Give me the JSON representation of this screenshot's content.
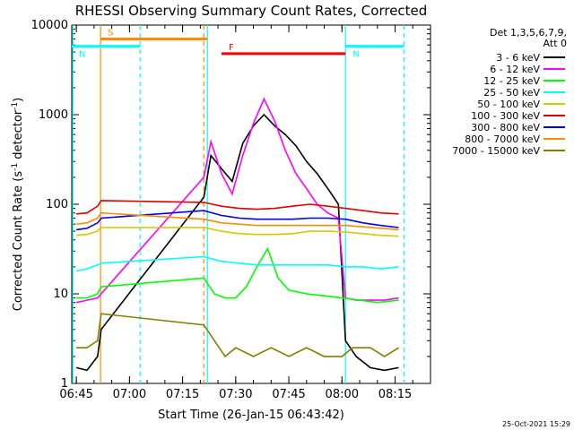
{
  "chart_data": {
    "type": "line",
    "title": "RHESSI Observing Summary Count Rates, Corrected",
    "xlabel": "Start Time (26-Jan-15 06:43:42)",
    "ylabel": "Corrected Count Rate (s⁻¹ detector⁻¹)",
    "ylabel_main": "Corrected Count Rate (s",
    "ylabel_sup1": "-1",
    "ylabel_mid": " detector",
    "ylabel_sup2": "-1",
    "ylabel_end": ")",
    "yscale": "log",
    "xlim": [
      "06:43:42",
      "08:25:00"
    ],
    "ylim": [
      1,
      10000
    ],
    "x_ticks": [
      "06:45",
      "07:00",
      "07:15",
      "07:30",
      "07:45",
      "08:00",
      "08:15"
    ],
    "y_ticks": [
      1,
      10,
      100,
      1000,
      10000
    ],
    "y_tick_labels": [
      "1",
      "10",
      "100",
      "1000",
      "10000"
    ],
    "legend_header": [
      "Det 1,3,5,6,7,9,",
      "Att 0"
    ],
    "legend_position": "right",
    "timestamp": "25-Oct-2021 15:29",
    "grid": false,
    "series": [
      {
        "name": "3 - 6 keV",
        "color": "#000000",
        "x": [
          "06:45",
          "06:48",
          "06:51",
          "06:52",
          "07:21",
          "07:23",
          "07:26",
          "07:29",
          "07:32",
          "07:35",
          "07:38",
          "07:41",
          "07:44",
          "07:47",
          "07:50",
          "07:53",
          "07:56",
          "07:59",
          "08:01",
          "08:04",
          "08:08",
          "08:12",
          "08:16"
        ],
        "y": [
          1.5,
          1.4,
          2,
          4,
          120,
          350,
          250,
          180,
          480,
          750,
          1000,
          750,
          600,
          450,
          300,
          220,
          150,
          100,
          3,
          2,
          1.5,
          1.4,
          1.5
        ]
      },
      {
        "name": "6 - 12 keV",
        "color": "#ff00ff",
        "x": [
          "06:45",
          "06:48",
          "06:51",
          "06:52",
          "07:21",
          "07:23",
          "07:26",
          "07:29",
          "07:32",
          "07:35",
          "07:38",
          "07:41",
          "07:44",
          "07:47",
          "07:50",
          "07:53",
          "07:56",
          "07:59",
          "08:01",
          "08:04",
          "08:08",
          "08:12",
          "08:16"
        ],
        "y": [
          8,
          8.5,
          9,
          10,
          200,
          500,
          220,
          130,
          350,
          800,
          1500,
          850,
          400,
          220,
          150,
          100,
          80,
          70,
          9,
          8.5,
          8.5,
          8.5,
          9
        ]
      },
      {
        "name": "12 - 25 keV",
        "color": "#00ff00",
        "x": [
          "06:45",
          "06:48",
          "06:51",
          "06:52",
          "07:21",
          "07:24",
          "07:27",
          "07:30",
          "07:33",
          "07:36",
          "07:39",
          "07:42",
          "07:45",
          "07:50",
          "07:55",
          "08:00",
          "08:05",
          "08:10",
          "08:16"
        ],
        "y": [
          9,
          9,
          10,
          12,
          15,
          10,
          9,
          9,
          12,
          20,
          32,
          15,
          11,
          10,
          9.5,
          9,
          8.5,
          8,
          8.5
        ]
      },
      {
        "name": "25 - 50 keV",
        "color": "#00ffff",
        "x": [
          "06:45",
          "06:48",
          "06:51",
          "06:52",
          "07:21",
          "07:26",
          "07:31",
          "07:36",
          "07:41",
          "07:46",
          "07:51",
          "07:56",
          "08:01",
          "08:06",
          "08:11",
          "08:16"
        ],
        "y": [
          18,
          19,
          21,
          22,
          26,
          23,
          22,
          21,
          21,
          21,
          21,
          21,
          20,
          20,
          19,
          20
        ]
      },
      {
        "name": "50 - 100 keV",
        "color": "#d4c800",
        "x": [
          "06:45",
          "06:48",
          "06:51",
          "06:52",
          "07:21",
          "07:26",
          "07:31",
          "07:36",
          "07:41",
          "07:46",
          "07:51",
          "07:56",
          "08:01",
          "08:06",
          "08:11",
          "08:16"
        ],
        "y": [
          45,
          46,
          50,
          55,
          55,
          50,
          47,
          46,
          46,
          47,
          50,
          50,
          49,
          47,
          45,
          44
        ]
      },
      {
        "name": "100 - 300 keV",
        "color": "#e00000",
        "x": [
          "06:45",
          "06:48",
          "06:51",
          "06:52",
          "07:21",
          "07:26",
          "07:31",
          "07:36",
          "07:41",
          "07:46",
          "07:51",
          "07:56",
          "08:01",
          "08:06",
          "08:11",
          "08:16"
        ],
        "y": [
          78,
          80,
          95,
          110,
          105,
          95,
          90,
          88,
          90,
          95,
          100,
          95,
          90,
          85,
          80,
          78
        ]
      },
      {
        "name": "300 - 800 keV",
        "color": "#0000ee",
        "x": [
          "06:45",
          "06:48",
          "06:51",
          "06:52",
          "07:21",
          "07:26",
          "07:31",
          "07:36",
          "07:41",
          "07:46",
          "07:51",
          "07:56",
          "08:01",
          "08:06",
          "08:11",
          "08:16"
        ],
        "y": [
          52,
          54,
          62,
          70,
          85,
          75,
          70,
          68,
          68,
          68,
          70,
          70,
          68,
          62,
          58,
          55
        ]
      },
      {
        "name": "800 - 7000 keV",
        "color": "#ff8c00",
        "x": [
          "06:45",
          "06:48",
          "06:51",
          "06:52",
          "07:21",
          "07:26",
          "07:31",
          "07:36",
          "07:41",
          "07:46",
          "07:51",
          "07:56",
          "08:01",
          "08:06",
          "08:11",
          "08:16"
        ],
        "y": [
          60,
          62,
          70,
          80,
          68,
          62,
          60,
          58,
          58,
          58,
          58,
          58,
          58,
          56,
          54,
          52
        ]
      },
      {
        "name": "7000 - 15000 keV",
        "color": "#808000",
        "x": [
          "06:45",
          "06:48",
          "06:51",
          "06:52",
          "07:21",
          "07:24",
          "07:27",
          "07:30",
          "07:35",
          "07:40",
          "07:45",
          "07:50",
          "07:55",
          "08:00",
          "08:03",
          "08:08",
          "08:12",
          "08:16"
        ],
        "y": [
          2.5,
          2.5,
          3,
          6,
          4.5,
          3,
          2,
          2.5,
          2,
          2.5,
          2,
          2.5,
          2,
          2,
          2.5,
          2.5,
          2,
          2.5
        ]
      }
    ],
    "shading": [
      {
        "label": "S",
        "color": "#ff8c00",
        "x_start": "06:51:50",
        "x_end": "07:22:00",
        "y": 7000
      },
      {
        "label": "N",
        "color": "#00ffff",
        "x_start": "06:43:42",
        "x_end": "07:03:00",
        "y": 5800
      },
      {
        "label": "N",
        "color": "#00ffff",
        "x_start": "08:01:00",
        "x_end": "08:17:30",
        "y": 5800
      },
      {
        "label": "F",
        "color": "#ff0000",
        "x_start": "07:26:00",
        "x_end": "08:01:00",
        "y": 4800
      }
    ],
    "markers": [
      {
        "x": "06:44:00",
        "color": "#00ffff",
        "style": "solid"
      },
      {
        "x": "06:51:50",
        "color": "#ff8c00",
        "style": "solid"
      },
      {
        "x": "07:03:00",
        "color": "#00ffff",
        "style": "dashed"
      },
      {
        "x": "07:21:00",
        "color": "#ff8c00",
        "style": "dashed"
      },
      {
        "x": "07:22:00",
        "color": "#00ffff",
        "style": "solid"
      },
      {
        "x": "08:01:00",
        "color": "#00ffff",
        "style": "solid"
      },
      {
        "x": "08:17:30",
        "color": "#00ffff",
        "style": "dashed"
      }
    ]
  }
}
